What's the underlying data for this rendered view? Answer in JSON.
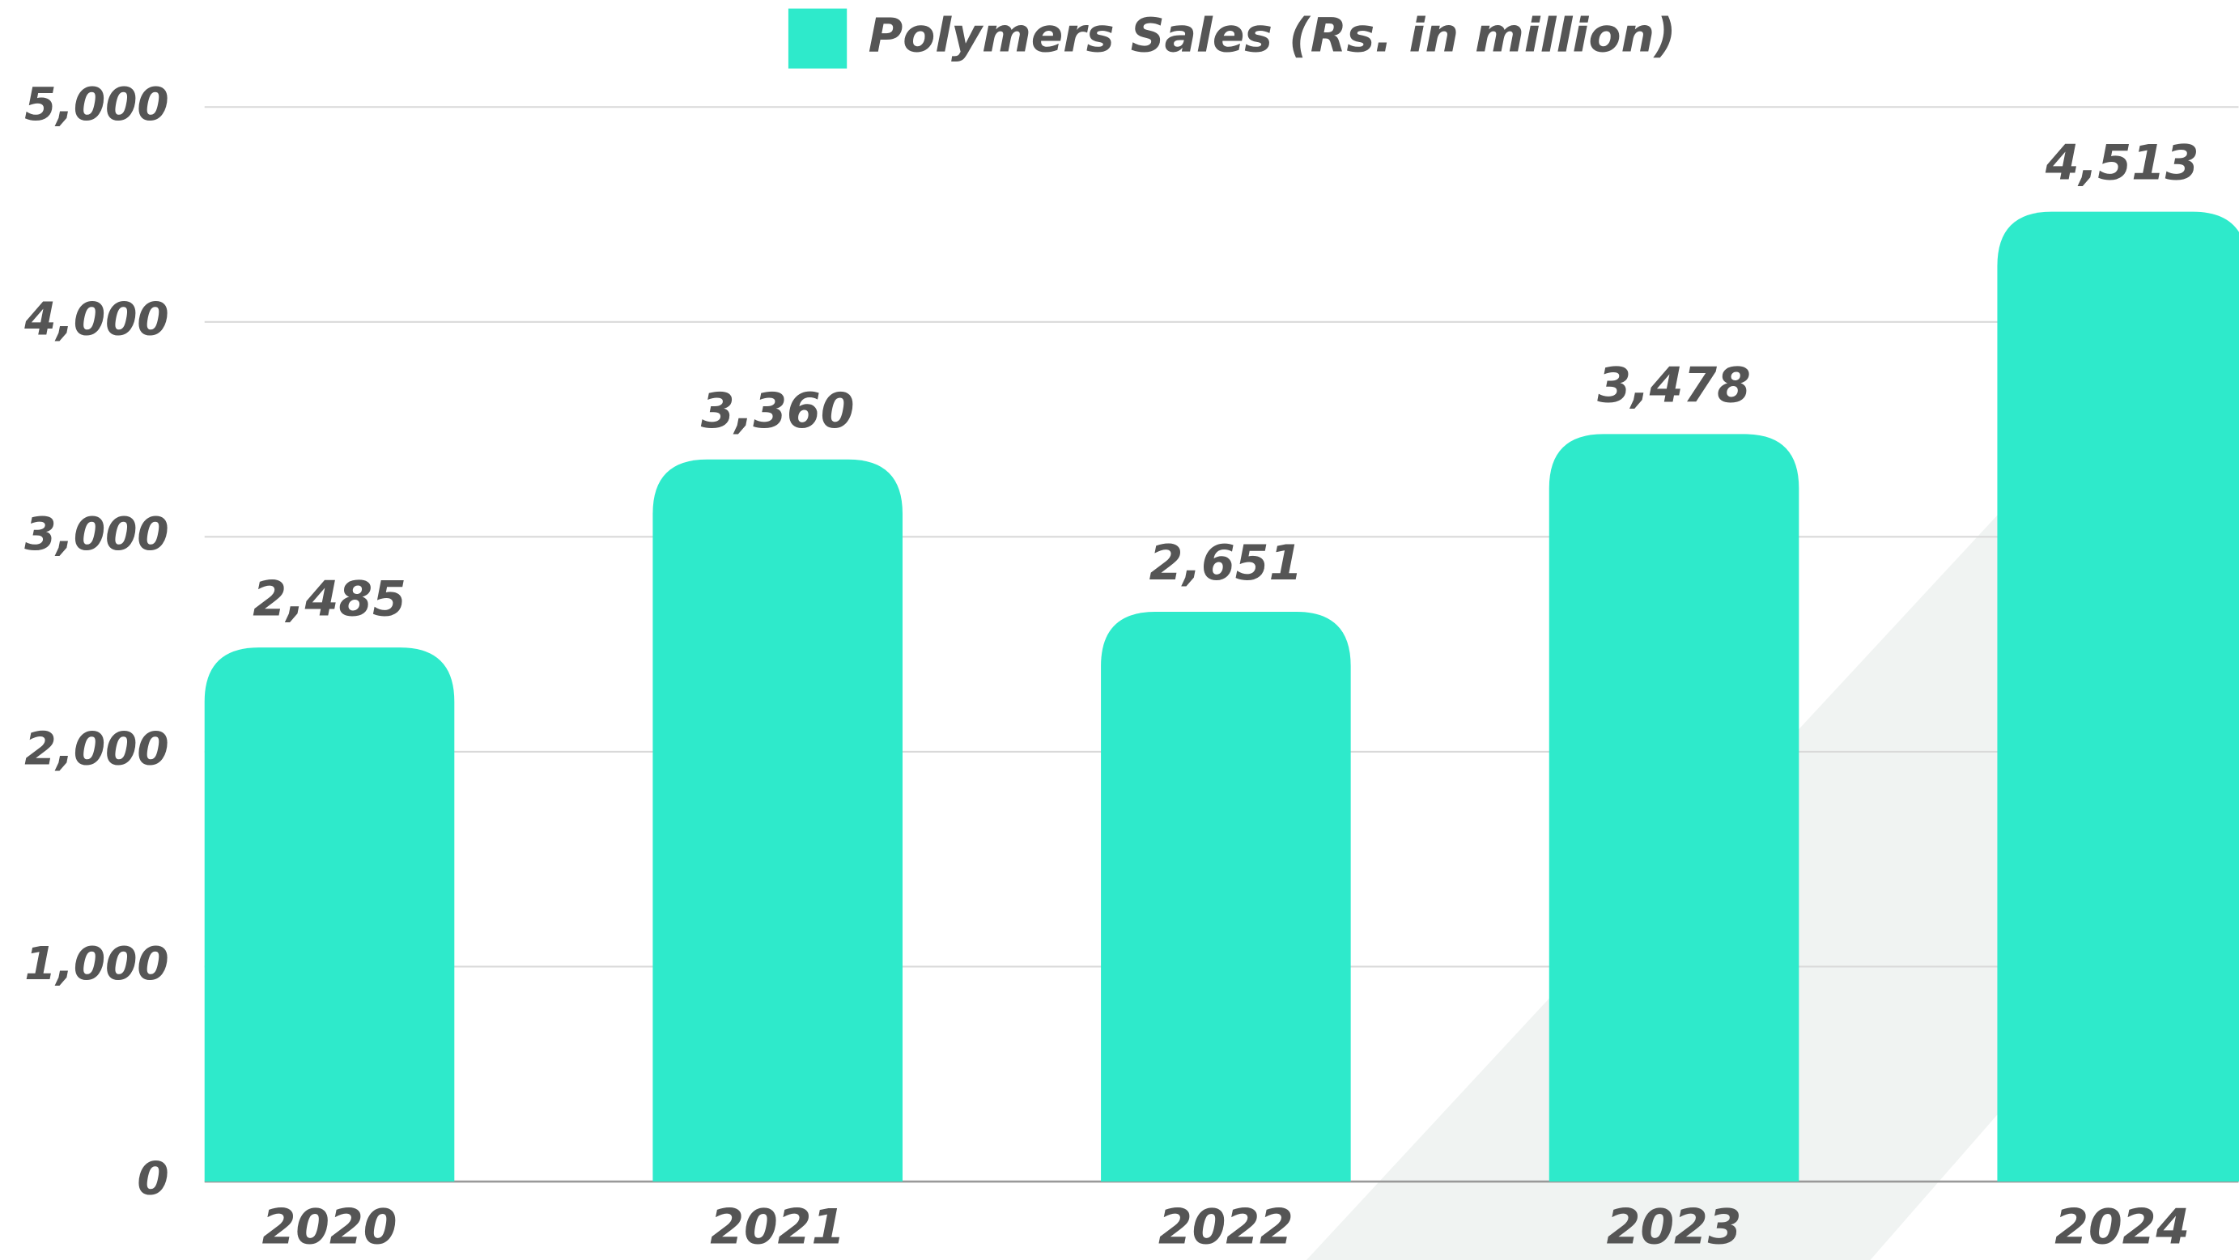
{
  "chart_data": {
    "type": "bar",
    "series": [
      {
        "name": "Polymers Sales (Rs. in million)",
        "color": "#2eeacb",
        "values": [
          2485,
          3360,
          2651,
          3478,
          4513
        ],
        "value_labels": [
          "2,485",
          "3,360",
          "2,651",
          "3,478",
          "4,513"
        ]
      }
    ],
    "categories": [
      "2020",
      "2021",
      "2022",
      "2023",
      "2024"
    ],
    "ylim": [
      0,
      5000
    ],
    "yticks": [
      0,
      {
        "value": 1000,
        "label": "1,000"
      },
      {
        "value": 2000,
        "label": "2,000"
      },
      {
        "value": 3000,
        "label": "3,000"
      },
      {
        "value": 4000,
        "label": "4,000"
      },
      {
        "value": 5000,
        "label": "5,000"
      }
    ],
    "grid": true
  }
}
